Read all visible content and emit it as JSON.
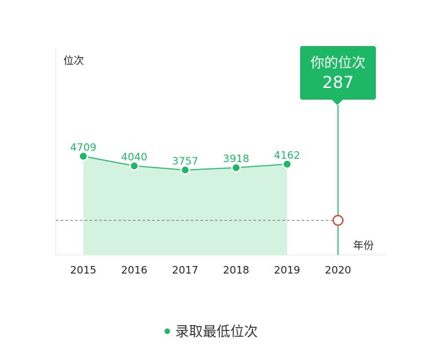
{
  "chart_data": {
    "type": "area",
    "categories": [
      "2015",
      "2016",
      "2017",
      "2018",
      "2019",
      "2020"
    ],
    "series": [
      {
        "name": "录取最低位次",
        "values": [
          4709,
          4040,
          3757,
          3918,
          4162,
          null
        ]
      }
    ],
    "ylabel": "位次",
    "xlabel": "年份",
    "reference_line": {
      "value": 287,
      "category": "2020"
    },
    "tooltip": {
      "title": "你的位次",
      "value": "287"
    },
    "legend": "bottom-center",
    "colors": {
      "series": "#1db765",
      "area": "#d4f2e0",
      "marker_ring": "#d0453a",
      "reference": "#777777"
    }
  }
}
